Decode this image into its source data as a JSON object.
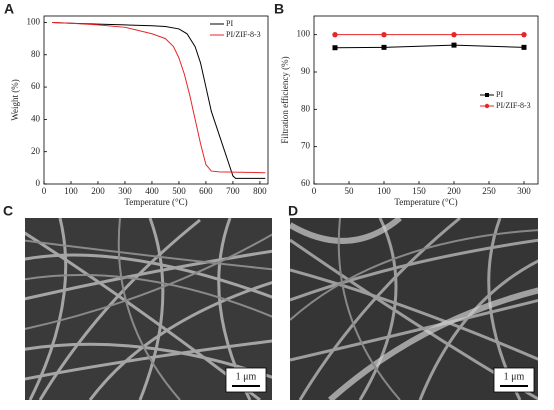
{
  "chart_data": [
    {
      "type": "line",
      "panel": "A",
      "x_label": "Temperature (°C)",
      "y_label": "Weight (%)",
      "xlim": [
        0,
        830
      ],
      "ylim": [
        0,
        104
      ],
      "xticks": [
        0,
        100,
        200,
        300,
        400,
        500,
        600,
        700,
        800
      ],
      "yticks": [
        0,
        20,
        40,
        60,
        80,
        100
      ],
      "legend": "upper right",
      "series": [
        {
          "name": "PI",
          "color": "#000000",
          "marker": "none",
          "x": [
            30,
            100,
            200,
            300,
            400,
            450,
            500,
            530,
            560,
            580,
            600,
            620,
            650,
            680,
            700,
            710,
            800,
            820
          ],
          "values": [
            100,
            99.5,
            99,
            98.5,
            98,
            97.5,
            96,
            93,
            85,
            75,
            60,
            45,
            30,
            15,
            5,
            3.5,
            3.5,
            3.5
          ]
        },
        {
          "name": "PI/ZIF-8-3",
          "color": "#e8262a",
          "marker": "none",
          "x": [
            30,
            100,
            200,
            300,
            350,
            400,
            450,
            480,
            500,
            520,
            540,
            560,
            580,
            600,
            620,
            650,
            820
          ],
          "values": [
            100,
            99.5,
            98.5,
            97,
            95,
            93,
            90,
            85,
            78,
            68,
            55,
            40,
            25,
            12,
            8,
            7.5,
            7
          ]
        }
      ]
    },
    {
      "type": "line",
      "panel": "B",
      "x_label": "Temperature (°C)",
      "y_label": "Filtration efficiency (%)",
      "xlim": [
        0,
        320
      ],
      "ylim": [
        60,
        105
      ],
      "xticks": [
        0,
        50,
        100,
        150,
        200,
        250,
        300
      ],
      "yticks": [
        60,
        70,
        80,
        90,
        100
      ],
      "legend": "center right",
      "x": [
        30,
        100,
        200,
        300
      ],
      "series": [
        {
          "name": "PI",
          "color": "#000000",
          "marker": "square",
          "values": [
            96.5,
            96.6,
            97.2,
            96.6
          ]
        },
        {
          "name": "PI/ZIF-8-3",
          "color": "#e8262a",
          "marker": "circle",
          "values": [
            100,
            100,
            100,
            100
          ]
        }
      ]
    }
  ],
  "images": [
    {
      "panel": "C",
      "scale_bar": "1 μm"
    },
    {
      "panel": "D",
      "scale_bar": "1 μm"
    }
  ]
}
